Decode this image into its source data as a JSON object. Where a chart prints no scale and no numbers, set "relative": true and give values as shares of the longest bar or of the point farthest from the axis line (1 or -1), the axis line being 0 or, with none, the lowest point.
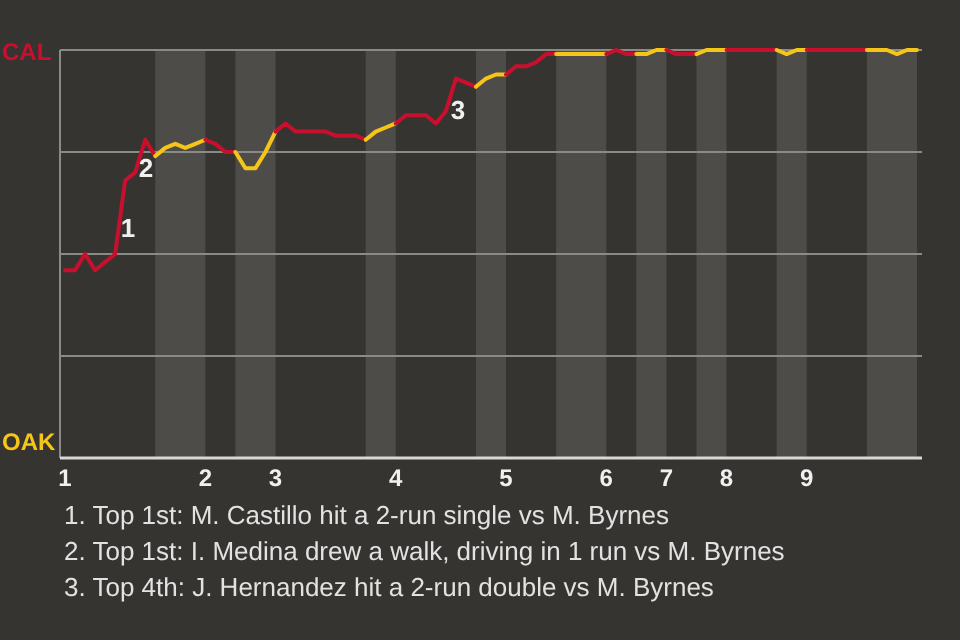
{
  "chart_data": {
    "type": "line",
    "relative": true,
    "grid": "y",
    "line_style": "solid",
    "categories": [
      "1",
      null,
      null,
      null,
      null,
      null,
      null,
      null,
      null,
      null,
      null,
      null,
      null,
      null,
      "2",
      null,
      null,
      null,
      null,
      null,
      null,
      "3",
      null,
      null,
      null,
      null,
      null,
      null,
      null,
      null,
      null,
      null,
      null,
      "4",
      null,
      null,
      null,
      null,
      null,
      null,
      null,
      null,
      null,
      null,
      "5",
      null,
      null,
      null,
      null,
      null,
      null,
      null,
      null,
      null,
      "6",
      null,
      null,
      null,
      null,
      null,
      "7",
      null,
      null,
      null,
      null,
      null,
      "8",
      null,
      null,
      null,
      null,
      null,
      null,
      null,
      "9",
      null,
      null,
      null,
      null,
      null,
      null,
      null,
      null,
      null,
      null,
      null
    ],
    "series": [
      {
        "name": "CAL",
        "color": "#c8102e",
        "values": [
          0.46,
          0.46,
          0.5,
          0.46,
          0.48,
          0.5,
          0.68,
          0.7,
          0.78,
          0.74,
          null,
          null,
          null,
          null,
          null,
          null,
          null,
          null,
          null,
          null,
          null,
          null,
          null,
          null,
          null,
          null,
          null,
          null,
          null,
          null,
          null,
          null,
          null,
          null,
          null,
          null,
          null,
          null,
          null,
          null,
          null,
          null,
          null,
          null,
          null,
          null,
          null,
          null,
          null,
          null,
          null,
          null,
          null,
          null,
          null,
          null,
          null,
          null,
          null,
          null,
          null,
          null,
          null,
          null,
          null,
          null,
          null,
          null,
          null,
          null,
          null,
          null,
          null,
          null,
          null,
          null,
          null,
          null,
          null,
          null,
          null,
          null,
          null,
          null,
          null,
          null
        ]
      },
      {
        "name": "OAK",
        "color": "#f5c518",
        "values": [
          null,
          null,
          null,
          null,
          null,
          null,
          null,
          null,
          null,
          0.74,
          0.76,
          0.77,
          0.76,
          0.77,
          0.78,
          null,
          null,
          null,
          null,
          null,
          null,
          null,
          null,
          null,
          null,
          null,
          null,
          null,
          null,
          null,
          null,
          null,
          null,
          null,
          null,
          null,
          null,
          null,
          null,
          null,
          null,
          null,
          null,
          null,
          null,
          null,
          null,
          null,
          null,
          null,
          null,
          null,
          null,
          null,
          null,
          null,
          null,
          null,
          null,
          null,
          null,
          null,
          null,
          null,
          null,
          null,
          null,
          null,
          null,
          null,
          null,
          null,
          null,
          null,
          null,
          null,
          null,
          null,
          null,
          null,
          null,
          null,
          null,
          null,
          null,
          null
        ]
      },
      {
        "color": "#c8102e",
        "values": [
          null,
          null,
          null,
          null,
          null,
          null,
          null,
          null,
          null,
          null,
          null,
          null,
          null,
          null,
          0.78,
          0.77,
          0.75,
          0.75,
          null,
          null,
          null,
          null,
          null,
          null,
          null,
          null,
          null,
          null,
          null,
          null,
          null,
          null,
          null,
          null,
          null,
          null,
          null,
          null,
          null,
          null,
          null,
          null,
          null,
          null,
          null,
          null,
          null,
          null,
          null,
          null,
          null,
          null,
          null,
          null,
          null,
          null,
          null,
          null,
          null,
          null,
          null,
          null,
          null,
          null,
          null,
          null,
          null,
          null,
          null,
          null,
          null,
          null,
          null,
          null,
          null,
          null,
          null,
          null,
          null,
          null,
          null,
          null,
          null,
          null,
          null,
          null
        ]
      },
      {
        "color": "#f5c518",
        "values": [
          null,
          null,
          null,
          null,
          null,
          null,
          null,
          null,
          null,
          null,
          null,
          null,
          null,
          null,
          null,
          null,
          null,
          0.75,
          0.71,
          0.71,
          0.75,
          0.8,
          null,
          null,
          null,
          null,
          null,
          null,
          null,
          null,
          null,
          null,
          null,
          null,
          null,
          null,
          null,
          null,
          null,
          null,
          null,
          null,
          null,
          null,
          null,
          null,
          null,
          null,
          null,
          null,
          null,
          null,
          null,
          null,
          null,
          null,
          null,
          null,
          null,
          null,
          null,
          null,
          null,
          null,
          null,
          null,
          null,
          null,
          null,
          null,
          null,
          null,
          null,
          null,
          null,
          null,
          null,
          null,
          null,
          null,
          null,
          null,
          null,
          null,
          null,
          null
        ]
      },
      {
        "color": "#c8102e",
        "values": [
          null,
          null,
          null,
          null,
          null,
          null,
          null,
          null,
          null,
          null,
          null,
          null,
          null,
          null,
          null,
          null,
          null,
          null,
          null,
          null,
          null,
          0.8,
          0.82,
          0.8,
          0.8,
          0.8,
          0.8,
          0.79,
          0.79,
          0.79,
          0.78,
          null,
          null,
          null,
          null,
          null,
          null,
          null,
          null,
          null,
          null,
          null,
          null,
          null,
          null,
          null,
          null,
          null,
          null,
          null,
          null,
          null,
          null,
          null,
          null,
          null,
          null,
          null,
          null,
          null,
          null,
          null,
          null,
          null,
          null,
          null,
          null,
          null,
          null,
          null,
          null,
          null,
          null,
          null,
          null,
          null,
          null,
          null,
          null,
          null,
          null,
          null,
          null,
          null,
          null,
          null
        ]
      },
      {
        "color": "#f5c518",
        "values": [
          null,
          null,
          null,
          null,
          null,
          null,
          null,
          null,
          null,
          null,
          null,
          null,
          null,
          null,
          null,
          null,
          null,
          null,
          null,
          null,
          null,
          null,
          null,
          null,
          null,
          null,
          null,
          null,
          null,
          null,
          0.78,
          0.8,
          0.81,
          0.82,
          null,
          null,
          null,
          null,
          null,
          null,
          null,
          null,
          null,
          null,
          null,
          null,
          null,
          null,
          null,
          null,
          null,
          null,
          null,
          null,
          null,
          null,
          null,
          null,
          null,
          null,
          null,
          null,
          null,
          null,
          null,
          null,
          null,
          null,
          null,
          null,
          null,
          null,
          null,
          null,
          null,
          null,
          null,
          null,
          null,
          null,
          null,
          null,
          null,
          null,
          null,
          null
        ]
      },
      {
        "color": "#c8102e",
        "values": [
          null,
          null,
          null,
          null,
          null,
          null,
          null,
          null,
          null,
          null,
          null,
          null,
          null,
          null,
          null,
          null,
          null,
          null,
          null,
          null,
          null,
          null,
          null,
          null,
          null,
          null,
          null,
          null,
          null,
          null,
          null,
          null,
          null,
          0.82,
          0.84,
          0.84,
          0.84,
          0.82,
          0.85,
          0.93,
          0.92,
          0.91,
          null,
          null,
          null,
          null,
          null,
          null,
          null,
          null,
          null,
          null,
          null,
          null,
          null,
          null,
          null,
          null,
          null,
          null,
          null,
          null,
          null,
          null,
          null,
          null,
          null,
          null,
          null,
          null,
          null,
          null,
          null,
          null,
          null,
          null,
          null,
          null,
          null,
          null,
          null,
          null,
          null,
          null,
          null,
          null
        ]
      },
      {
        "color": "#f5c518",
        "values": [
          null,
          null,
          null,
          null,
          null,
          null,
          null,
          null,
          null,
          null,
          null,
          null,
          null,
          null,
          null,
          null,
          null,
          null,
          null,
          null,
          null,
          null,
          null,
          null,
          null,
          null,
          null,
          null,
          null,
          null,
          null,
          null,
          null,
          null,
          null,
          null,
          null,
          null,
          null,
          null,
          null,
          0.91,
          0.93,
          0.94,
          0.94,
          null,
          null,
          null,
          null,
          null,
          null,
          null,
          null,
          null,
          null,
          null,
          null,
          null,
          null,
          null,
          null,
          null,
          null,
          null,
          null,
          null,
          null,
          null,
          null,
          null,
          null,
          null,
          null,
          null,
          null,
          null,
          null,
          null,
          null,
          null,
          null,
          null,
          null,
          null,
          null,
          null
        ]
      },
      {
        "color": "#c8102e",
        "values": [
          null,
          null,
          null,
          null,
          null,
          null,
          null,
          null,
          null,
          null,
          null,
          null,
          null,
          null,
          null,
          null,
          null,
          null,
          null,
          null,
          null,
          null,
          null,
          null,
          null,
          null,
          null,
          null,
          null,
          null,
          null,
          null,
          null,
          null,
          null,
          null,
          null,
          null,
          null,
          null,
          null,
          null,
          null,
          null,
          0.94,
          0.96,
          0.96,
          0.97,
          0.99,
          0.99,
          null,
          null,
          null,
          null,
          null,
          null,
          null,
          null,
          null,
          null,
          null,
          null,
          null,
          null,
          null,
          null,
          null,
          null,
          null,
          null,
          null,
          null,
          null,
          null,
          null,
          null,
          null,
          null,
          null,
          null,
          null,
          null,
          null,
          null,
          null,
          null
        ]
      },
      {
        "color": "#f5c518",
        "values": [
          null,
          null,
          null,
          null,
          null,
          null,
          null,
          null,
          null,
          null,
          null,
          null,
          null,
          null,
          null,
          null,
          null,
          null,
          null,
          null,
          null,
          null,
          null,
          null,
          null,
          null,
          null,
          null,
          null,
          null,
          null,
          null,
          null,
          null,
          null,
          null,
          null,
          null,
          null,
          null,
          null,
          null,
          null,
          null,
          null,
          null,
          null,
          null,
          null,
          0.99,
          0.99,
          0.99,
          0.99,
          0.99,
          0.99,
          null,
          null,
          null,
          null,
          null,
          null,
          null,
          null,
          null,
          null,
          null,
          null,
          null,
          null,
          null,
          null,
          null,
          null,
          null,
          null,
          null,
          null,
          null,
          null,
          null,
          null,
          null,
          null,
          null,
          null,
          null
        ]
      },
      {
        "color": "#c8102e",
        "values": [
          null,
          null,
          null,
          null,
          null,
          null,
          null,
          null,
          null,
          null,
          null,
          null,
          null,
          null,
          null,
          null,
          null,
          null,
          null,
          null,
          null,
          null,
          null,
          null,
          null,
          null,
          null,
          null,
          null,
          null,
          null,
          null,
          null,
          null,
          null,
          null,
          null,
          null,
          null,
          null,
          null,
          null,
          null,
          null,
          null,
          null,
          null,
          null,
          null,
          null,
          null,
          null,
          null,
          null,
          0.99,
          1.0,
          0.99,
          0.99,
          null,
          null,
          null,
          null,
          null,
          null,
          null,
          null,
          null,
          null,
          null,
          null,
          null,
          null,
          null,
          null,
          null,
          null,
          null,
          null,
          null,
          null,
          null,
          null,
          null,
          null,
          null,
          null
        ]
      },
      {
        "color": "#f5c518",
        "values": [
          null,
          null,
          null,
          null,
          null,
          null,
          null,
          null,
          null,
          null,
          null,
          null,
          null,
          null,
          null,
          null,
          null,
          null,
          null,
          null,
          null,
          null,
          null,
          null,
          null,
          null,
          null,
          null,
          null,
          null,
          null,
          null,
          null,
          null,
          null,
          null,
          null,
          null,
          null,
          null,
          null,
          null,
          null,
          null,
          null,
          null,
          null,
          null,
          null,
          null,
          null,
          null,
          null,
          null,
          null,
          null,
          null,
          0.99,
          0.99,
          1.0,
          1.0,
          null,
          null,
          null,
          null,
          null,
          null,
          null,
          null,
          null,
          null,
          null,
          null,
          null,
          null,
          null,
          null,
          null,
          null,
          null,
          null,
          null,
          null,
          null,
          null,
          null
        ]
      },
      {
        "color": "#c8102e",
        "values": [
          null,
          null,
          null,
          null,
          null,
          null,
          null,
          null,
          null,
          null,
          null,
          null,
          null,
          null,
          null,
          null,
          null,
          null,
          null,
          null,
          null,
          null,
          null,
          null,
          null,
          null,
          null,
          null,
          null,
          null,
          null,
          null,
          null,
          null,
          null,
          null,
          null,
          null,
          null,
          null,
          null,
          null,
          null,
          null,
          null,
          null,
          null,
          null,
          null,
          null,
          null,
          null,
          null,
          null,
          null,
          null,
          null,
          null,
          null,
          null,
          1.0,
          0.99,
          0.99,
          0.99,
          null,
          null,
          null,
          null,
          null,
          null,
          null,
          null,
          null,
          null,
          null,
          null,
          null,
          null,
          null,
          null,
          null,
          null,
          null,
          null,
          null,
          null
        ]
      },
      {
        "color": "#f5c518",
        "values": [
          null,
          null,
          null,
          null,
          null,
          null,
          null,
          null,
          null,
          null,
          null,
          null,
          null,
          null,
          null,
          null,
          null,
          null,
          null,
          null,
          null,
          null,
          null,
          null,
          null,
          null,
          null,
          null,
          null,
          null,
          null,
          null,
          null,
          null,
          null,
          null,
          null,
          null,
          null,
          null,
          null,
          null,
          null,
          null,
          null,
          null,
          null,
          null,
          null,
          null,
          null,
          null,
          null,
          null,
          null,
          null,
          null,
          null,
          null,
          null,
          null,
          null,
          null,
          0.99,
          1.0,
          1.0,
          1.0,
          null,
          null,
          null,
          null,
          null,
          null,
          null,
          null,
          null,
          null,
          null,
          null,
          null,
          null,
          null,
          null,
          null,
          null,
          null
        ]
      },
      {
        "color": "#c8102e",
        "values": [
          null,
          null,
          null,
          null,
          null,
          null,
          null,
          null,
          null,
          null,
          null,
          null,
          null,
          null,
          null,
          null,
          null,
          null,
          null,
          null,
          null,
          null,
          null,
          null,
          null,
          null,
          null,
          null,
          null,
          null,
          null,
          null,
          null,
          null,
          null,
          null,
          null,
          null,
          null,
          null,
          null,
          null,
          null,
          null,
          null,
          null,
          null,
          null,
          null,
          null,
          null,
          null,
          null,
          null,
          null,
          null,
          null,
          null,
          null,
          null,
          null,
          null,
          null,
          null,
          null,
          null,
          1.0,
          1.0,
          1.0,
          1.0,
          1.0,
          1.0,
          null,
          null,
          null,
          null,
          null,
          null,
          null,
          null,
          null,
          null,
          null,
          null,
          null,
          null
        ]
      },
      {
        "color": "#f5c518",
        "values": [
          null,
          null,
          null,
          null,
          null,
          null,
          null,
          null,
          null,
          null,
          null,
          null,
          null,
          null,
          null,
          null,
          null,
          null,
          null,
          null,
          null,
          null,
          null,
          null,
          null,
          null,
          null,
          null,
          null,
          null,
          null,
          null,
          null,
          null,
          null,
          null,
          null,
          null,
          null,
          null,
          null,
          null,
          null,
          null,
          null,
          null,
          null,
          null,
          null,
          null,
          null,
          null,
          null,
          null,
          null,
          null,
          null,
          null,
          null,
          null,
          null,
          null,
          null,
          null,
          null,
          null,
          null,
          null,
          null,
          null,
          null,
          1.0,
          0.99,
          1.0,
          1.0,
          null,
          null,
          null,
          null,
          null,
          null,
          null,
          null,
          null,
          null,
          null
        ]
      },
      {
        "color": "#c8102e",
        "values": [
          null,
          null,
          null,
          null,
          null,
          null,
          null,
          null,
          null,
          null,
          null,
          null,
          null,
          null,
          null,
          null,
          null,
          null,
          null,
          null,
          null,
          null,
          null,
          null,
          null,
          null,
          null,
          null,
          null,
          null,
          null,
          null,
          null,
          null,
          null,
          null,
          null,
          null,
          null,
          null,
          null,
          null,
          null,
          null,
          null,
          null,
          null,
          null,
          null,
          null,
          null,
          null,
          null,
          null,
          null,
          null,
          null,
          null,
          null,
          null,
          null,
          null,
          null,
          null,
          null,
          null,
          null,
          null,
          null,
          null,
          null,
          null,
          null,
          null,
          1.0,
          1.0,
          1.0,
          1.0,
          1.0,
          1.0,
          1.0,
          null,
          null,
          null,
          null,
          null
        ]
      },
      {
        "color": "#f5c518",
        "values": [
          null,
          null,
          null,
          null,
          null,
          null,
          null,
          null,
          null,
          null,
          null,
          null,
          null,
          null,
          null,
          null,
          null,
          null,
          null,
          null,
          null,
          null,
          null,
          null,
          null,
          null,
          null,
          null,
          null,
          null,
          null,
          null,
          null,
          null,
          null,
          null,
          null,
          null,
          null,
          null,
          null,
          null,
          null,
          null,
          null,
          null,
          null,
          null,
          null,
          null,
          null,
          null,
          null,
          null,
          null,
          null,
          null,
          null,
          null,
          null,
          null,
          null,
          null,
          null,
          null,
          null,
          null,
          null,
          null,
          null,
          null,
          null,
          null,
          null,
          null,
          null,
          null,
          null,
          null,
          null,
          1.0,
          1.0,
          1.0,
          0.99,
          1.0,
          1.0
        ]
      }
    ],
    "annotations": [
      "1",
      "2",
      "3",
      "1. Top 1st: M. Castillo hit a 2-run single vs M. Byrnes",
      "2. Top 1st: I. Medina drew a walk, driving in 1 run vs M. Byrnes",
      "3. Top 4th: J. Hernandez hit a 2-run double vs M. Byrnes"
    ]
  }
}
